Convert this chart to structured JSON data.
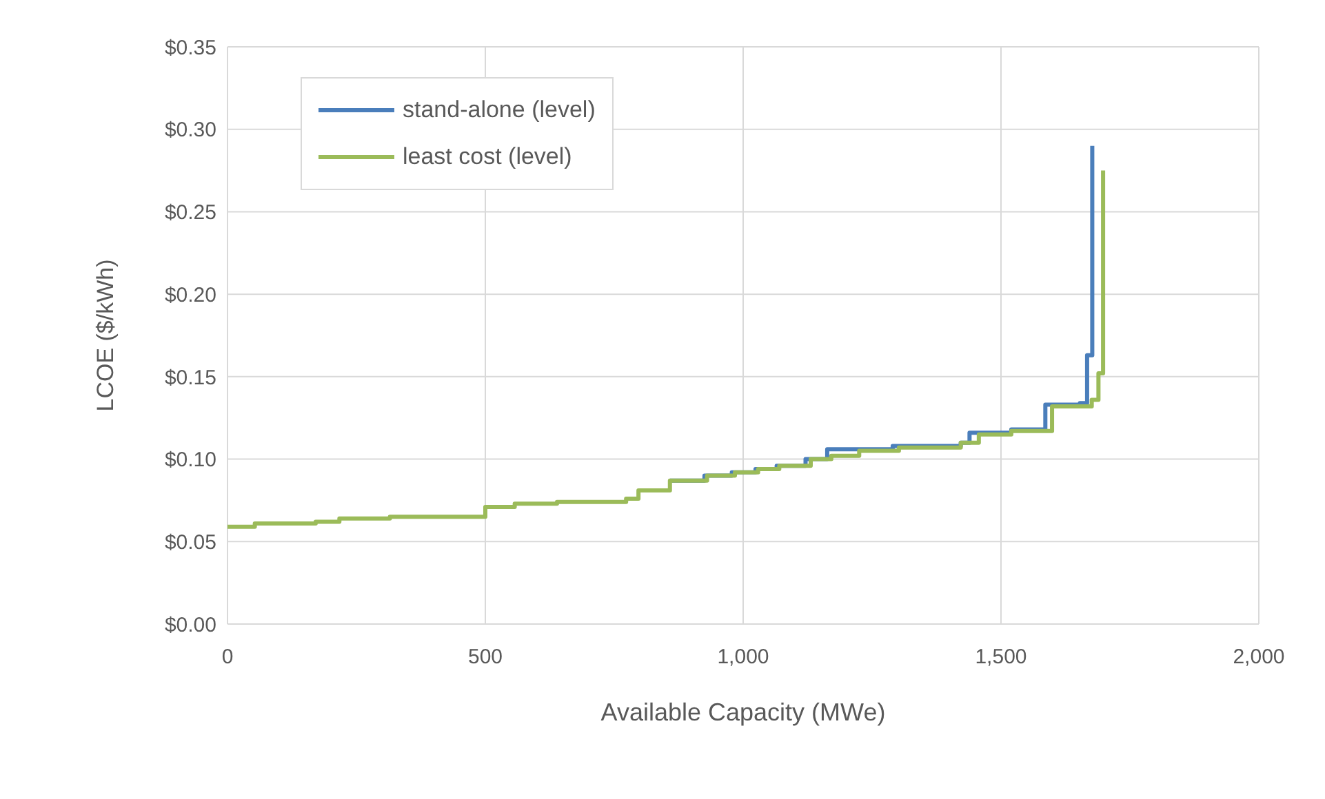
{
  "chart_data": {
    "type": "step",
    "xlabel": "Available Capacity (MWe)",
    "ylabel": "LCOE ($/kWh)",
    "xlim": [
      0,
      2000
    ],
    "xticks": [
      0,
      500,
      {
        "value": 1000,
        "label": "1,000"
      },
      {
        "value": 1500,
        "label": "1,500"
      },
      {
        "value": 2000,
        "label": "2,000"
      }
    ],
    "ylim": [
      0,
      0.35
    ],
    "yticks": [
      {
        "value": 0,
        "label": "$0.00"
      },
      {
        "value": 0.05,
        "label": "$0.05"
      },
      {
        "value": 0.1,
        "label": "$0.10"
      },
      {
        "value": 0.15,
        "label": "$0.15"
      },
      {
        "value": 0.2,
        "label": "$0.20"
      },
      {
        "value": 0.25,
        "label": "$0.25"
      },
      {
        "value": 0.3,
        "label": "$0.30"
      },
      {
        "value": 0.35,
        "label": "$0.35"
      }
    ],
    "grid": true,
    "legend": "top left",
    "marker": "none",
    "line_style": "solid",
    "series": [
      {
        "name": "stand-alone (level)",
        "color": "#4a7ebb",
        "x": [
          858,
          925,
          978,
          1024,
          1065,
          1121,
          1163,
          1290,
          1422,
          1439,
          1520,
          1586,
          1653,
          1667,
          1677
        ],
        "values": [
          0.087,
          0.09,
          0.092,
          0.094,
          0.096,
          0.1,
          0.106,
          0.108,
          0.11,
          0.116,
          0.118,
          0.133,
          0.134,
          0.163,
          0.29
        ]
      },
      {
        "name": "least cost (level)",
        "color": "#9bbb59",
        "x": [
          0,
          53,
          171,
          217,
          315,
          500,
          557,
          639,
          773,
          797,
          858,
          930,
          984,
          1029,
          1070,
          1131,
          1171,
          1225,
          1302,
          1422,
          1457,
          1520,
          1599,
          1676,
          1689,
          1698
        ],
        "values": [
          0.059,
          0.061,
          0.062,
          0.064,
          0.065,
          0.071,
          0.073,
          0.074,
          0.076,
          0.081,
          0.087,
          0.09,
          0.092,
          0.094,
          0.096,
          0.1,
          0.102,
          0.105,
          0.107,
          0.11,
          0.115,
          0.117,
          0.132,
          0.136,
          0.152,
          0.275
        ]
      }
    ]
  }
}
